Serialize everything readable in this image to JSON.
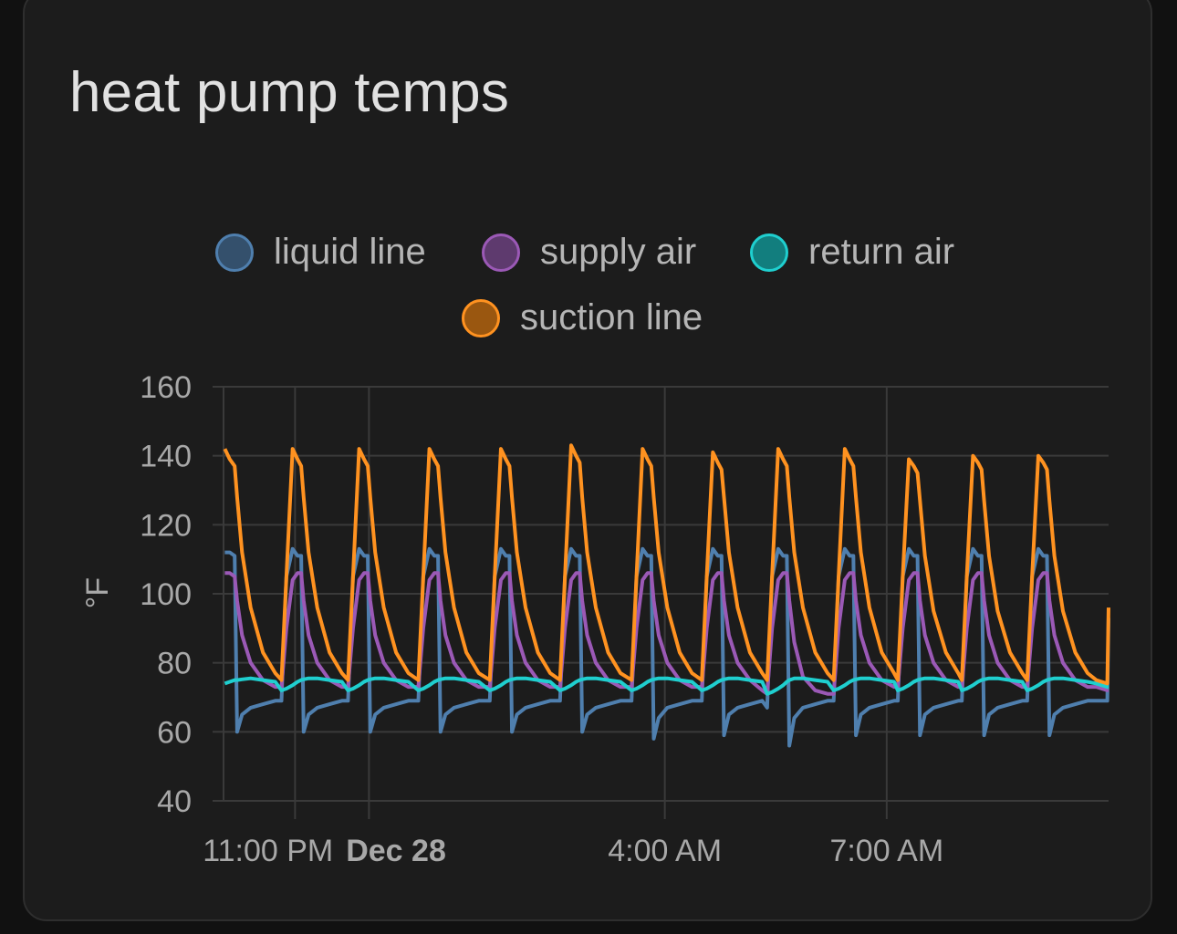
{
  "card": {
    "title": "heat pump temps"
  },
  "chart_data": {
    "type": "line",
    "title": "heat pump temps",
    "ylabel": "°F",
    "xlabel": "",
    "ylim": [
      40,
      160
    ],
    "yticks": [
      40,
      60,
      80,
      100,
      120,
      140,
      160
    ],
    "xlim": [
      "22:02",
      "10:00"
    ],
    "xticks": [
      {
        "time": "23:00",
        "label": "11:00 PM",
        "bold": false
      },
      {
        "time": "00:00",
        "label": "Dec 28",
        "bold": true
      },
      {
        "time": "04:00",
        "label": "4:00 AM",
        "bold": false
      },
      {
        "time": "07:00",
        "label": "7:00 AM",
        "bold": false
      }
    ],
    "grid": true,
    "legend": "top-center",
    "x": [
      "22:03",
      "22:07",
      "22:11",
      "22:13",
      "22:17",
      "22:24",
      "22:34",
      "22:44",
      "22:49",
      "22:53",
      "22:58",
      "23:02",
      "23:05",
      "23:07",
      "23:11",
      "23:18",
      "23:28",
      "23:38",
      "23:43",
      "23:47",
      "23:52",
      "23:56",
      "23:59",
      "00:01",
      "00:05",
      "00:12",
      "00:22",
      "00:32",
      "00:40",
      "00:44",
      "00:49",
      "00:53",
      "00:56",
      "00:58",
      "01:02",
      "01:09",
      "01:19",
      "01:29",
      "01:38",
      "01:42",
      "01:47",
      "01:51",
      "01:54",
      "01:56",
      "02:00",
      "02:07",
      "02:17",
      "02:27",
      "02:35",
      "02:39",
      "02:44",
      "02:48",
      "02:51",
      "02:53",
      "02:57",
      "03:04",
      "03:14",
      "03:24",
      "03:33",
      "03:37",
      "03:42",
      "03:46",
      "03:49",
      "03:51",
      "03:55",
      "04:02",
      "04:12",
      "04:22",
      "04:30",
      "04:34",
      "04:39",
      "04:43",
      "04:46",
      "04:48",
      "04:52",
      "04:59",
      "05:09",
      "05:19",
      "05:23",
      "05:27",
      "05:32",
      "05:36",
      "05:39",
      "05:41",
      "05:45",
      "05:52",
      "06:02",
      "06:12",
      "06:17",
      "06:21",
      "06:26",
      "06:30",
      "06:33",
      "06:35",
      "06:39",
      "06:46",
      "06:56",
      "07:06",
      "07:09",
      "07:13",
      "07:18",
      "07:22",
      "07:25",
      "07:27",
      "07:31",
      "07:38",
      "07:48",
      "07:58",
      "08:01",
      "08:05",
      "08:10",
      "08:14",
      "08:17",
      "08:19",
      "08:23",
      "08:30",
      "08:40",
      "08:50",
      "08:54",
      "08:58",
      "09:03",
      "09:07",
      "09:10",
      "09:12",
      "09:16",
      "09:23",
      "09:33",
      "09:43",
      "09:50",
      "09:59",
      "10:00"
    ],
    "series": [
      {
        "name": "liquid line",
        "color": "#4f7fae",
        "fill": "#34506c",
        "values": [
          112,
          112,
          111,
          60,
          65,
          67,
          68,
          69,
          69,
          105,
          113,
          111,
          111,
          60,
          65,
          67,
          68,
          69,
          69,
          105,
          113,
          111,
          111,
          60,
          65,
          67,
          68,
          69,
          69,
          105,
          113,
          111,
          111,
          60,
          65,
          67,
          68,
          69,
          69,
          105,
          113,
          111,
          111,
          60,
          65,
          67,
          68,
          69,
          69,
          105,
          113,
          111,
          111,
          60,
          65,
          67,
          68,
          69,
          69,
          105,
          113,
          111,
          111,
          58,
          64,
          67,
          68,
          69,
          69,
          105,
          113,
          111,
          111,
          59,
          65,
          67,
          68,
          69,
          67,
          105,
          113,
          111,
          111,
          56,
          64,
          67,
          68,
          69,
          69,
          105,
          113,
          111,
          111,
          59,
          65,
          67,
          68,
          69,
          69,
          105,
          113,
          111,
          111,
          59,
          65,
          67,
          68,
          69,
          69,
          105,
          113,
          111,
          111,
          59,
          65,
          67,
          68,
          69,
          69,
          105,
          113,
          111,
          111,
          59,
          65,
          67,
          68,
          69,
          69,
          69,
          93
        ]
      },
      {
        "name": "supply air",
        "color": "#9b59b6",
        "fill": "#5e3a6e",
        "values": [
          106,
          106,
          105,
          98,
          88,
          80,
          75,
          73,
          73,
          90,
          104,
          106,
          106,
          98,
          88,
          80,
          75,
          73,
          73,
          90,
          104,
          106,
          106,
          98,
          88,
          80,
          75,
          73,
          73,
          90,
          104,
          106,
          106,
          98,
          88,
          80,
          75,
          73,
          73,
          90,
          104,
          106,
          106,
          98,
          88,
          80,
          75,
          73,
          73,
          90,
          104,
          106,
          106,
          98,
          88,
          80,
          75,
          73,
          73,
          90,
          104,
          106,
          106,
          98,
          88,
          80,
          75,
          73,
          73,
          90,
          104,
          106,
          106,
          98,
          88,
          80,
          75,
          72,
          71,
          90,
          104,
          106,
          106,
          98,
          86,
          76,
          72,
          71,
          71,
          90,
          104,
          106,
          106,
          98,
          88,
          80,
          75,
          73,
          73,
          90,
          104,
          106,
          106,
          98,
          88,
          80,
          75,
          73,
          73,
          90,
          104,
          106,
          106,
          98,
          88,
          80,
          75,
          73,
          73,
          90,
          104,
          106,
          106,
          98,
          88,
          80,
          75,
          73,
          73,
          72,
          72
        ]
      },
      {
        "name": "return air",
        "color": "#1fcfcf",
        "fill": "#127e7e",
        "values": [
          74,
          74.5,
          75,
          75,
          75.2,
          75.5,
          75,
          74.5,
          72,
          72.5,
          73.5,
          74.5,
          75,
          75.2,
          75.5,
          75.5,
          75,
          74.5,
          72,
          72.5,
          73.5,
          74.5,
          75,
          75.2,
          75.5,
          75.5,
          75,
          74.5,
          72,
          72.5,
          73.5,
          74.5,
          75,
          75.2,
          75.5,
          75.5,
          75,
          74.5,
          72,
          72.5,
          73.5,
          74.5,
          75,
          75.2,
          75.5,
          75.5,
          75,
          74.5,
          72,
          72.5,
          73.5,
          74.5,
          75,
          75.2,
          75.5,
          75.5,
          75,
          74.5,
          72,
          72.5,
          73.5,
          74.5,
          75,
          75.2,
          75.5,
          75.5,
          75,
          74.5,
          72,
          72.5,
          73.5,
          74.5,
          75,
          75.2,
          75.5,
          75.5,
          75,
          74.5,
          71,
          71.5,
          72.5,
          73.5,
          74.5,
          75,
          75.5,
          75.5,
          75,
          74.5,
          72,
          72.5,
          73.5,
          74.5,
          75,
          75.2,
          75.5,
          75.5,
          75,
          74.5,
          72,
          72.5,
          73.5,
          74.5,
          75,
          75.2,
          75.5,
          75.5,
          75,
          74.5,
          72,
          72.5,
          73.5,
          74.5,
          75,
          75.2,
          75.5,
          75.5,
          75,
          74.5,
          72,
          72.5,
          73.5,
          74.5,
          75,
          75.2,
          75.5,
          75.5,
          75,
          74.5,
          74,
          73,
          73
        ]
      },
      {
        "name": "suction line",
        "color": "#ff9220",
        "fill": "#9a5710",
        "values": [
          142,
          139,
          137,
          128,
          112,
          96,
          83,
          77,
          75,
          105,
          142,
          139,
          137,
          128,
          112,
          96,
          83,
          77,
          75,
          105,
          142,
          139,
          137,
          128,
          112,
          96,
          83,
          77,
          75,
          105,
          142,
          139,
          137,
          128,
          112,
          96,
          83,
          77,
          75,
          105,
          142,
          139,
          137,
          128,
          112,
          96,
          83,
          77,
          75,
          105,
          143,
          140,
          138,
          128,
          112,
          96,
          83,
          77,
          75,
          105,
          142,
          139,
          137,
          128,
          112,
          96,
          83,
          77,
          75,
          105,
          141,
          138,
          136,
          128,
          112,
          96,
          83,
          77,
          75,
          105,
          142,
          139,
          137,
          128,
          112,
          96,
          83,
          77,
          75,
          105,
          142,
          139,
          137,
          128,
          112,
          96,
          83,
          77,
          75,
          105,
          139,
          137,
          135,
          127,
          111,
          95,
          83,
          77,
          75,
          105,
          140,
          138,
          136,
          127,
          111,
          95,
          83,
          77,
          75,
          105,
          140,
          138,
          136,
          127,
          111,
          95,
          83,
          77,
          75,
          74,
          96
        ]
      }
    ]
  }
}
